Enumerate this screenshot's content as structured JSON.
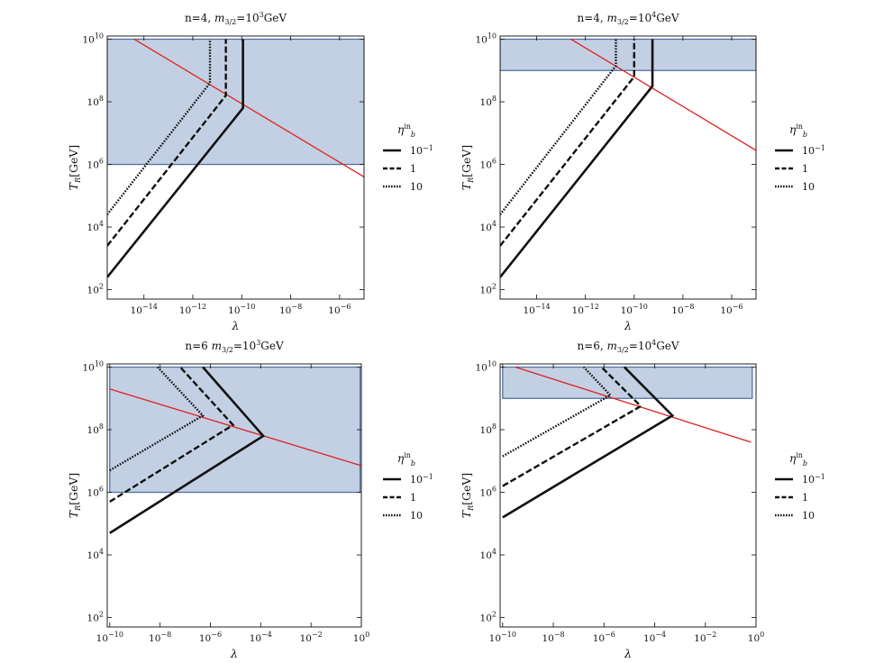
{
  "colors": {
    "region_fill": "#c3d0e3",
    "region_stroke": "#4f72a5",
    "constraint_line": "#e02020",
    "curve": "#111111",
    "frame": "#222222"
  },
  "chart_data": [
    {
      "type": "line",
      "title_prefix": "n=4, ",
      "title_math": "m",
      "title_sub": "3/2",
      "title_eq": "=10",
      "title_exp": "3",
      "title_unit": "GeV",
      "xlabel": "λ",
      "ylabel_main": "T",
      "ylabel_sub": "R",
      "ylabel_unit": "[GeV]",
      "x_scale": "log10",
      "y_scale": "log10",
      "xlim": [
        -15.5,
        -5.0
      ],
      "ylim": [
        1.7,
        10.1
      ],
      "x_ticks": [
        {
          "value": -14,
          "base": "10",
          "exp": "−14"
        },
        {
          "value": -12,
          "base": "10",
          "exp": "−12"
        },
        {
          "value": -10,
          "base": "10",
          "exp": "−10"
        },
        {
          "value": -8,
          "base": "10",
          "exp": "−8"
        },
        {
          "value": -6,
          "base": "10",
          "exp": "−6"
        }
      ],
      "y_ticks": [
        {
          "value": 2,
          "base": "10",
          "exp": "2"
        },
        {
          "value": 4,
          "base": "10",
          "exp": "4"
        },
        {
          "value": 6,
          "base": "10",
          "exp": "6"
        },
        {
          "value": 8,
          "base": "10",
          "exp": "8"
        },
        {
          "value": 10,
          "base": "10",
          "exp": "10"
        }
      ],
      "region": {
        "x": [
          -15.5,
          -5.0
        ],
        "y": [
          6.0,
          10.0
        ]
      },
      "constraint": {
        "points": [
          [
            -14.4,
            10.0
          ],
          [
            -5.0,
            5.6
          ]
        ]
      },
      "series": [
        {
          "name": "eta = 10^-1",
          "style": "solid",
          "points": [
            [
              -15.5,
              2.4
            ],
            [
              -9.95,
              7.8
            ],
            [
              -9.95,
              10.0
            ]
          ]
        },
        {
          "name": "eta = 1",
          "style": "dashed",
          "points": [
            [
              -15.5,
              3.4
            ],
            [
              -10.65,
              8.2
            ],
            [
              -10.65,
              10.0
            ]
          ]
        },
        {
          "name": "eta = 10",
          "style": "dotted",
          "points": [
            [
              -15.5,
              4.4
            ],
            [
              -11.3,
              8.6
            ],
            [
              -11.3,
              10.0
            ]
          ]
        }
      ],
      "legend": {
        "placement": "right",
        "title_base": "η",
        "title_sup": "in",
        "title_sub": "b",
        "entries": [
          {
            "style": "solid",
            "base": "10",
            "exp": "−1"
          },
          {
            "style": "dashed",
            "base": "1",
            "exp": ""
          },
          {
            "style": "dotted",
            "base": "10",
            "exp": ""
          }
        ]
      }
    },
    {
      "type": "line",
      "title_prefix": "n=4, ",
      "title_math": "m",
      "title_sub": "3/2",
      "title_eq": "=10",
      "title_exp": "4",
      "title_unit": "GeV",
      "xlabel": "λ",
      "ylabel_main": "T",
      "ylabel_sub": "R",
      "ylabel_unit": "[GeV]",
      "x_scale": "log10",
      "y_scale": "log10",
      "xlim": [
        -15.5,
        -5.0
      ],
      "ylim": [
        1.7,
        10.1
      ],
      "x_ticks": [
        {
          "value": -14,
          "base": "10",
          "exp": "−14"
        },
        {
          "value": -12,
          "base": "10",
          "exp": "−12"
        },
        {
          "value": -10,
          "base": "10",
          "exp": "−10"
        },
        {
          "value": -8,
          "base": "10",
          "exp": "−8"
        },
        {
          "value": -6,
          "base": "10",
          "exp": "−6"
        }
      ],
      "y_ticks": [
        {
          "value": 2,
          "base": "10",
          "exp": "2"
        },
        {
          "value": 4,
          "base": "10",
          "exp": "4"
        },
        {
          "value": 6,
          "base": "10",
          "exp": "6"
        },
        {
          "value": 8,
          "base": "10",
          "exp": "8"
        },
        {
          "value": 10,
          "base": "10",
          "exp": "10"
        }
      ],
      "region": {
        "x": [
          -15.5,
          -5.0
        ],
        "y": [
          9.0,
          10.0
        ]
      },
      "constraint": {
        "points": [
          [
            -12.6,
            10.0
          ],
          [
            -5.0,
            6.45
          ]
        ]
      },
      "series": [
        {
          "name": "eta = 10^-1",
          "style": "solid",
          "points": [
            [
              -15.5,
              2.4
            ],
            [
              -9.25,
              8.5
            ],
            [
              -9.25,
              10.0
            ]
          ]
        },
        {
          "name": "eta = 1",
          "style": "dashed",
          "points": [
            [
              -15.5,
              3.4
            ],
            [
              -10.0,
              8.8
            ],
            [
              -10.0,
              10.0
            ]
          ]
        },
        {
          "name": "eta = 10",
          "style": "dotted",
          "points": [
            [
              -15.5,
              4.4
            ],
            [
              -10.75,
              9.15
            ],
            [
              -10.75,
              10.0
            ]
          ]
        }
      ],
      "legend": {
        "placement": "right",
        "title_base": "η",
        "title_sup": "in",
        "title_sub": "b",
        "entries": [
          {
            "style": "solid",
            "base": "10",
            "exp": "−1"
          },
          {
            "style": "dashed",
            "base": "1",
            "exp": ""
          },
          {
            "style": "dotted",
            "base": "10",
            "exp": ""
          }
        ]
      }
    },
    {
      "type": "line",
      "title_prefix": "n=6 ",
      "title_math": "m",
      "title_sub": "3/2",
      "title_eq": "=10",
      "title_exp": "3",
      "title_unit": "GeV",
      "xlabel": "λ",
      "ylabel_main": "T",
      "ylabel_sub": "R",
      "ylabel_unit": "[GeV]",
      "x_scale": "log10",
      "y_scale": "log10",
      "xlim": [
        -10.1,
        0.0
      ],
      "ylim": [
        1.7,
        10.1
      ],
      "x_ticks": [
        {
          "value": -10,
          "base": "10",
          "exp": "−10"
        },
        {
          "value": -8,
          "base": "10",
          "exp": "−8"
        },
        {
          "value": -6,
          "base": "10",
          "exp": "−6"
        },
        {
          "value": -4,
          "base": "10",
          "exp": "−4"
        },
        {
          "value": -2,
          "base": "10",
          "exp": "−2"
        },
        {
          "value": 0,
          "base": "10",
          "exp": "0"
        }
      ],
      "y_ticks": [
        {
          "value": 2,
          "base": "10",
          "exp": "2"
        },
        {
          "value": 4,
          "base": "10",
          "exp": "4"
        },
        {
          "value": 6,
          "base": "10",
          "exp": "6"
        },
        {
          "value": 8,
          "base": "10",
          "exp": "8"
        },
        {
          "value": 10,
          "base": "10",
          "exp": "10"
        }
      ],
      "region": {
        "x": [
          -10.0,
          -0.05
        ],
        "y": [
          6.0,
          10.0
        ]
      },
      "constraint": {
        "points": [
          [
            -10.0,
            9.3
          ],
          [
            0.0,
            6.85
          ]
        ]
      },
      "series": [
        {
          "name": "eta = 10^-1",
          "style": "solid",
          "points": [
            [
              -10.0,
              4.7
            ],
            [
              -3.9,
              7.8
            ],
            [
              -6.3,
              10.0
            ]
          ]
        },
        {
          "name": "eta = 1",
          "style": "dashed",
          "points": [
            [
              -10.0,
              5.7
            ],
            [
              -5.1,
              8.15
            ],
            [
              -7.2,
              10.0
            ]
          ]
        },
        {
          "name": "eta = 10",
          "style": "dotted",
          "points": [
            [
              -10.0,
              6.7
            ],
            [
              -6.3,
              8.45
            ],
            [
              -8.1,
              10.0
            ]
          ]
        }
      ],
      "legend": {
        "placement": "right",
        "title_base": "η",
        "title_sup": "in",
        "title_sub": "b",
        "entries": [
          {
            "style": "solid",
            "base": "10",
            "exp": "−1"
          },
          {
            "style": "dashed",
            "base": "1",
            "exp": ""
          },
          {
            "style": "dotted",
            "base": "10",
            "exp": ""
          }
        ]
      }
    },
    {
      "type": "line",
      "title_prefix": "n=6, ",
      "title_math": "m",
      "title_sub": "3/2",
      "title_eq": "=10",
      "title_exp": "4",
      "title_unit": "GeV",
      "xlabel": "λ",
      "ylabel_main": "T",
      "ylabel_sub": "R",
      "ylabel_unit": "[GeV]",
      "x_scale": "log10",
      "y_scale": "log10",
      "xlim": [
        -10.1,
        0.0
      ],
      "ylim": [
        1.7,
        10.1
      ],
      "x_ticks": [
        {
          "value": -10,
          "base": "10",
          "exp": "−10"
        },
        {
          "value": -8,
          "base": "10",
          "exp": "−8"
        },
        {
          "value": -6,
          "base": "10",
          "exp": "−6"
        },
        {
          "value": -4,
          "base": "10",
          "exp": "−4"
        },
        {
          "value": -2,
          "base": "10",
          "exp": "−2"
        },
        {
          "value": 0,
          "base": "10",
          "exp": "0"
        }
      ],
      "y_ticks": [
        {
          "value": 2,
          "base": "10",
          "exp": "2"
        },
        {
          "value": 4,
          "base": "10",
          "exp": "4"
        },
        {
          "value": 6,
          "base": "10",
          "exp": "6"
        },
        {
          "value": 8,
          "base": "10",
          "exp": "8"
        },
        {
          "value": 10,
          "base": "10",
          "exp": "10"
        }
      ],
      "region": {
        "x": [
          -10.0,
          -0.15
        ],
        "y": [
          9.0,
          10.0
        ]
      },
      "constraint": {
        "points": [
          [
            -9.5,
            10.0
          ],
          [
            -0.2,
            7.6
          ]
        ]
      },
      "series": [
        {
          "name": "eta = 10^-1",
          "style": "solid",
          "points": [
            [
              -10.0,
              5.2
            ],
            [
              -3.3,
              8.45
            ],
            [
              -5.2,
              10.0
            ]
          ]
        },
        {
          "name": "eta = 1",
          "style": "dashed",
          "points": [
            [
              -10.0,
              6.2
            ],
            [
              -4.55,
              8.75
            ],
            [
              -6.1,
              10.0
            ]
          ]
        },
        {
          "name": "eta = 10",
          "style": "dotted",
          "points": [
            [
              -10.0,
              7.15
            ],
            [
              -5.75,
              9.1
            ],
            [
              -6.8,
              10.0
            ]
          ]
        }
      ],
      "legend": {
        "placement": "right",
        "title_base": "η",
        "title_sup": "in",
        "title_sub": "b",
        "entries": [
          {
            "style": "solid",
            "base": "10",
            "exp": "−1"
          },
          {
            "style": "dashed",
            "base": "1",
            "exp": ""
          },
          {
            "style": "dotted",
            "base": "10",
            "exp": ""
          }
        ]
      }
    }
  ]
}
